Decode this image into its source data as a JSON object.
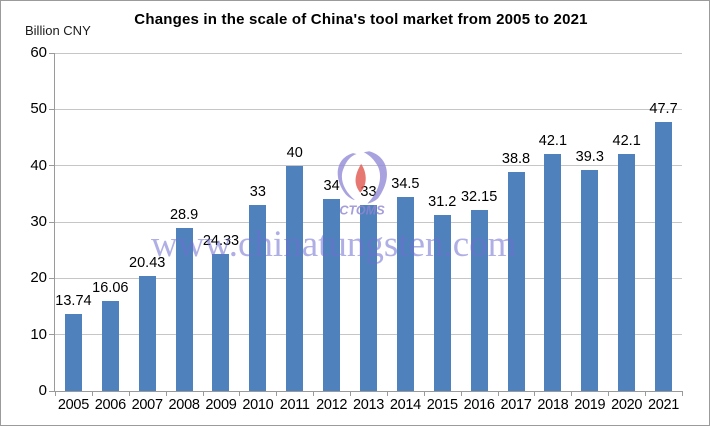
{
  "chart_data": {
    "type": "bar",
    "title": "Changes in the scale of China's tool market from 2005 to 2021",
    "unit_label": "Billion CNY",
    "categories": [
      "2005",
      "2006",
      "2007",
      "2008",
      "2009",
      "2010",
      "2011",
      "2012",
      "2013",
      "2014",
      "2015",
      "2016",
      "2017",
      "2018",
      "2019",
      "2020",
      "2021"
    ],
    "values": [
      13.74,
      16.06,
      20.43,
      28.9,
      24.33,
      33,
      40,
      34,
      33,
      34.5,
      31.2,
      32.15,
      38.8,
      42.1,
      39.3,
      42.1,
      47.7
    ],
    "xlabel": "",
    "ylabel": "",
    "ylim": [
      0,
      60
    ],
    "yticks": [
      0,
      10,
      20,
      30,
      40,
      50,
      60
    ],
    "grid": "horizontal",
    "legend": "none",
    "bar_color": "#4F81BD",
    "gridline_color": "#c6c6c6",
    "axis_color": "#9a9a9a"
  },
  "watermark": {
    "text": "www.chinatungsten.com",
    "logo_text": "CTOMS",
    "text_color": "#6f6fd0",
    "logo_purple": "#938cd6",
    "logo_red": "#e0574e"
  }
}
